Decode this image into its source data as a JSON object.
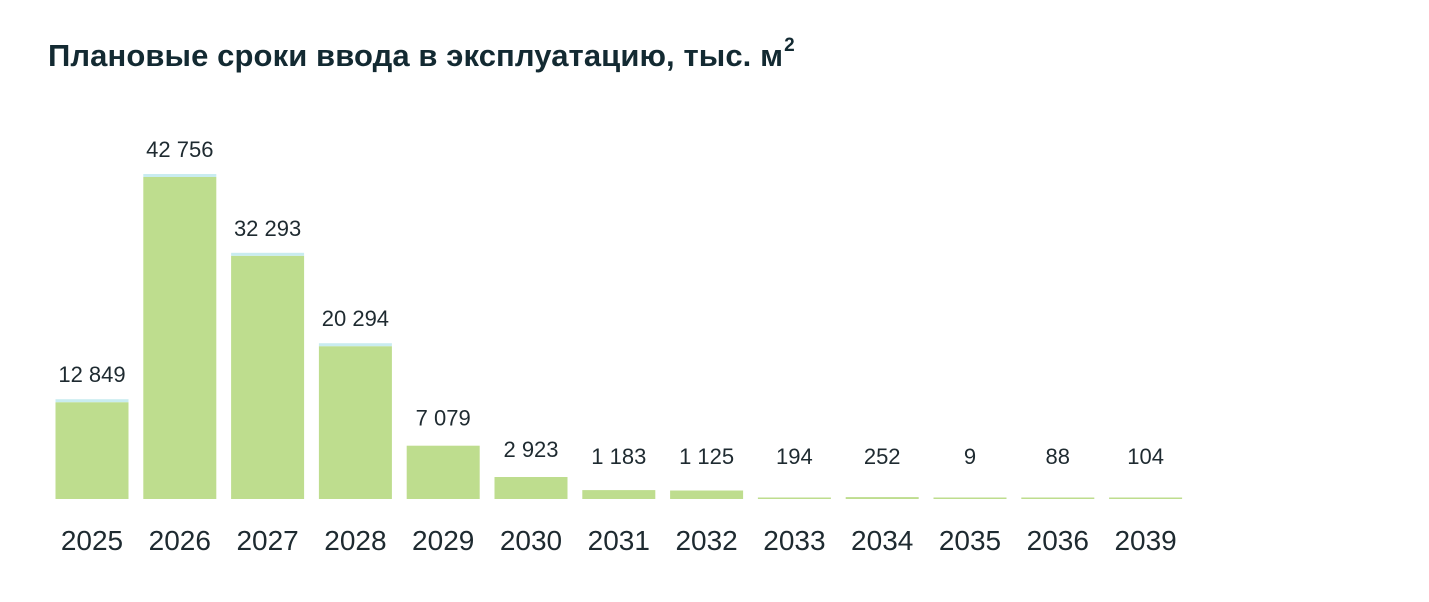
{
  "title": "Плановые сроки ввода в эксплуатацию, тыс. м",
  "title_sup": "2",
  "colors": {
    "bar": "#bedd8e",
    "bar_top": "#c9ecf0",
    "text": "#1e2a30",
    "title": "#132a32"
  },
  "chart_data": {
    "type": "bar",
    "title": "Плановые сроки ввода в эксплуатацию, тыс. м²",
    "xlabel": "",
    "ylabel": "",
    "categories": [
      "2025",
      "2026",
      "2027",
      "2028",
      "2029",
      "2030",
      "2031",
      "2032",
      "2033",
      "2034",
      "2035",
      "2036",
      "2039"
    ],
    "values": [
      12849,
      42756,
      32293,
      20294,
      7079,
      2923,
      1183,
      1125,
      194,
      252,
      9,
      88,
      104
    ],
    "value_labels": [
      "12 849",
      "42 756",
      "32 293",
      "20 294",
      "7 079",
      "2 923",
      "1 183",
      "1 125",
      "194",
      "252",
      "9",
      "88",
      "104"
    ],
    "ylim": [
      0,
      42756
    ],
    "grid": false,
    "legend": "none"
  }
}
